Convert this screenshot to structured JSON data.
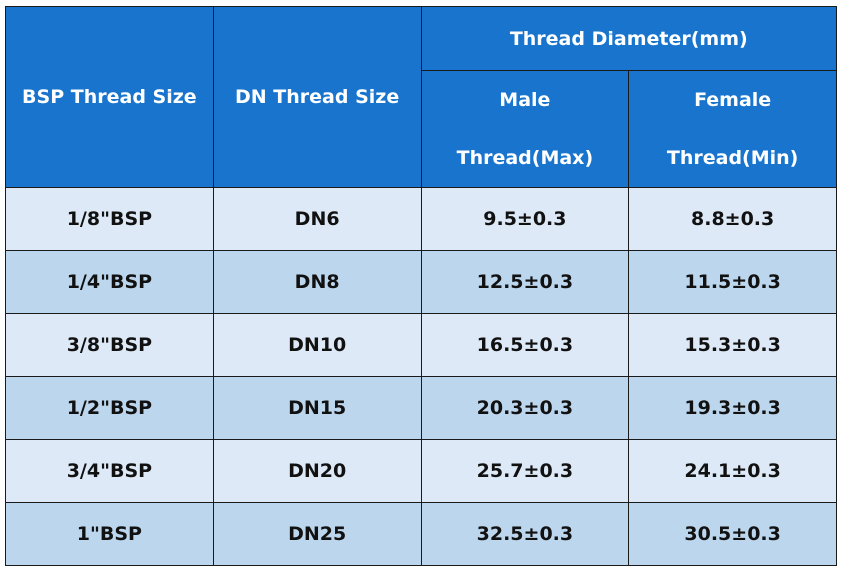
{
  "header": {
    "bsp": "BSP Thread Size",
    "dn": "DN Thread Size",
    "diameter": "Thread Diameter(mm)",
    "male_line1": "Male",
    "male_line2": "Thread(Max)",
    "female_line1": "Female",
    "female_line2": "Thread(Min)"
  },
  "colors": {
    "header": "#1874cd",
    "row_light": "#dde9f6",
    "row_dark": "#bcd6ee"
  },
  "rows": [
    {
      "bsp": "1/8\"BSP",
      "dn": "DN6",
      "male": "9.5±0.3",
      "female": "8.8±0.3"
    },
    {
      "bsp": "1/4\"BSP",
      "dn": "DN8",
      "male": "12.5±0.3",
      "female": "11.5±0.3"
    },
    {
      "bsp": "3/8\"BSP",
      "dn": "DN10",
      "male": "16.5±0.3",
      "female": "15.3±0.3"
    },
    {
      "bsp": "1/2\"BSP",
      "dn": "DN15",
      "male": "20.3±0.3",
      "female": "19.3±0.3"
    },
    {
      "bsp": "3/4\"BSP",
      "dn": "DN20",
      "male": "25.7±0.3",
      "female": "24.1±0.3"
    },
    {
      "bsp": "1\"BSP",
      "dn": "DN25",
      "male": "32.5±0.3",
      "female": "30.5±0.3"
    }
  ]
}
